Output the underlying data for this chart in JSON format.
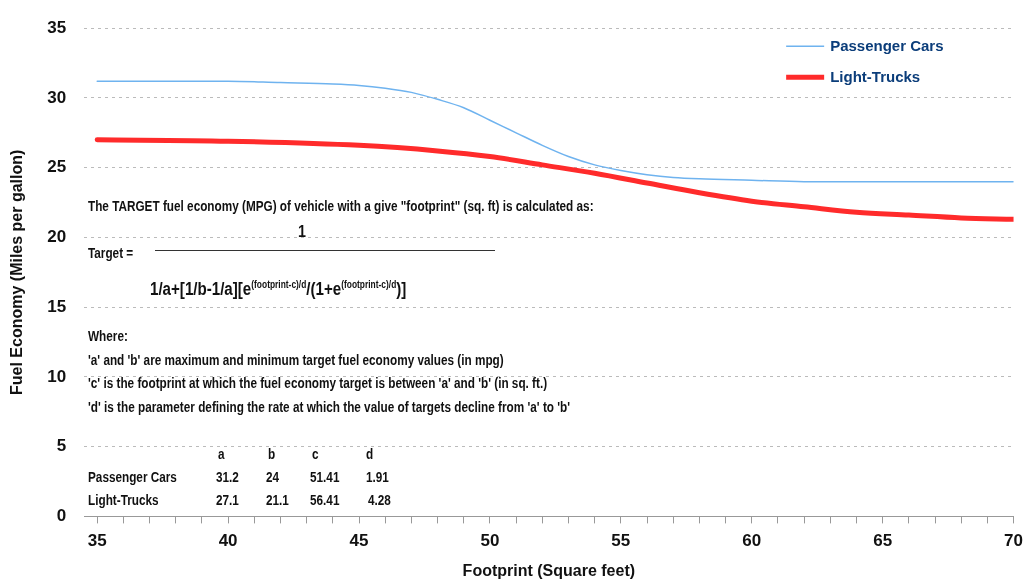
{
  "chart_data": {
    "type": "line",
    "xlabel": "Footprint (Square feet)",
    "ylabel": "Fuel Economy (Miles per gallon)",
    "xlim": [
      34.5,
      70
    ],
    "xticks": [
      35,
      {
        "value": 36,
        "label": null
      },
      {
        "value": 37,
        "label": null
      },
      {
        "value": 38,
        "label": null
      },
      {
        "value": 39,
        "label": null
      },
      40,
      {
        "value": 41,
        "label": null
      },
      {
        "value": 42,
        "label": null
      },
      {
        "value": 43,
        "label": null
      },
      {
        "value": 44,
        "label": null
      },
      45,
      {
        "value": 46,
        "label": null
      },
      {
        "value": 47,
        "label": null
      },
      {
        "value": 48,
        "label": null
      },
      {
        "value": 49,
        "label": null
      },
      50,
      {
        "value": 51,
        "label": null
      },
      {
        "value": 52,
        "label": null
      },
      {
        "value": 53,
        "label": null
      },
      {
        "value": 54,
        "label": null
      },
      55,
      {
        "value": 56,
        "label": null
      },
      {
        "value": 57,
        "label": null
      },
      {
        "value": 58,
        "label": null
      },
      {
        "value": 59,
        "label": null
      },
      60,
      {
        "value": 61,
        "label": null
      },
      {
        "value": 62,
        "label": null
      },
      {
        "value": 63,
        "label": null
      },
      {
        "value": 64,
        "label": null
      },
      65,
      {
        "value": 66,
        "label": null
      },
      {
        "value": 67,
        "label": null
      },
      {
        "value": 68,
        "label": null
      },
      {
        "value": 69,
        "label": null
      },
      70
    ],
    "ylim": [
      0,
      35
    ],
    "yticks": [
      0,
      5,
      10,
      15,
      20,
      25,
      30,
      35
    ],
    "grid": "y",
    "legend": "top right",
    "marker": "none",
    "line_style": "solid",
    "series": [
      {
        "name": "Passenger Cars",
        "color": "#6fb3ef",
        "x": [
          35,
          40,
          42,
          44,
          45,
          46,
          47,
          48,
          49,
          50,
          51,
          52,
          53,
          54,
          55,
          56,
          57,
          58,
          60,
          62,
          65,
          70
        ],
        "values": [
          31.2,
          31.2,
          31.1,
          31.0,
          30.9,
          30.7,
          30.4,
          29.9,
          29.3,
          28.4,
          27.5,
          26.6,
          25.8,
          25.2,
          24.8,
          24.5,
          24.3,
          24.2,
          24.1,
          24.0,
          24.0,
          24.0
        ]
      },
      {
        "name": "Light-Trucks",
        "color": "#ff2b2b",
        "x": [
          35,
          40,
          45,
          48,
          50,
          52,
          54,
          56,
          58,
          60,
          62,
          64,
          66,
          68,
          70
        ],
        "values": [
          27.0,
          26.9,
          26.6,
          26.2,
          25.8,
          25.2,
          24.6,
          23.9,
          23.2,
          22.6,
          22.2,
          21.8,
          21.6,
          21.4,
          21.3
        ]
      }
    ],
    "annotations": [
      "The TARGET fuel economy (MPG) of vehicle with a give \"footprint\" (sq. ft) is calculated as:",
      "1",
      "Target =",
      "1/a+[1/b-1/a][e$^{(footprint-c)/d}$/(1+e$^{(footprint-c)/d}$)]",
      "Where:",
      "'a' and 'b' are maximum and minimum target fuel economy values (in mpg)",
      "'c' is the footprint at which the fuel economy target is between 'a' and 'b' (in sq. ft.)",
      "'d' is the parameter defining the rate at which the value of targets decline from 'a' to 'b'",
      "a",
      "b",
      "c",
      "d",
      "Passenger Cars",
      "31.2",
      "24",
      "51.41",
      "1.91",
      "Light-Trucks",
      "27.1",
      "21.1",
      "56.41",
      "4.28"
    ]
  }
}
